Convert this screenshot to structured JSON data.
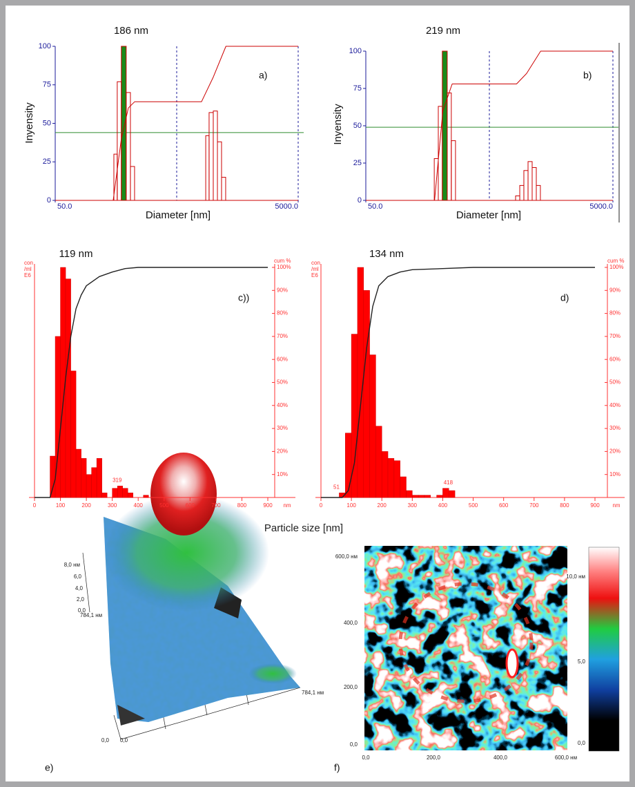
{
  "chart_data": [
    {
      "type": "histogram",
      "title": "186 nm",
      "panel_label": "a)",
      "xlabel": "Diameter [nm]",
      "ylabel": "Inyensity",
      "log_x": true,
      "bins": [
        152,
        162,
        175,
        192,
        208,
        225,
        867,
        924,
        1000,
        1082,
        1170,
        1265
      ],
      "values": [
        30,
        77,
        100,
        70,
        22,
        0,
        42,
        57,
        58,
        38,
        15
      ],
      "color": "#cc0000",
      "fills": [
        "none",
        "none",
        "#1a8a1a",
        "none",
        "none",
        "none",
        "none",
        "none",
        "none",
        "none",
        "none"
      ],
      "cumulative": {
        "x": [
          50,
          150,
          175,
          200,
          225,
          800,
          1000,
          1270,
          5000
        ],
        "values": [
          0,
          0,
          40,
          60,
          64,
          64,
          80,
          100,
          100
        ],
        "color": "#cc0000"
      },
      "hline": 44,
      "hline_color": "#2e8b2e",
      "vlines": [
        500,
        5000
      ],
      "vline_color": "#1a1a9a",
      "xlim": [
        50,
        5000
      ],
      "xticks": [
        {
          "value": 50,
          "label": "50.0"
        },
        {
          "value": 5000,
          "label": "5000.0"
        }
      ],
      "ylim": [
        0,
        100
      ],
      "yticks": [
        0,
        25,
        50,
        75,
        100
      ],
      "axis_color": "#1a1a9a"
    },
    {
      "type": "histogram",
      "title": "219 nm",
      "panel_label": "b)",
      "xlabel": "Diameter [nm]",
      "ylabel": "Inyensity",
      "log_x": true,
      "bins": [
        179,
        193,
        208,
        228,
        246,
        266,
        815,
        881,
        951,
        1028,
        1110,
        1199,
        1294
      ],
      "values": [
        28,
        63,
        100,
        72,
        40,
        0,
        3,
        10,
        20,
        26,
        22,
        10
      ],
      "color": "#cc0000",
      "fills": [
        "none",
        "none",
        "#1a8a1a",
        "none",
        "none",
        "none",
        "none",
        "none",
        "none",
        "none",
        "none",
        "none"
      ],
      "cumulative": {
        "x": [
          50,
          180,
          210,
          250,
          830,
          1000,
          1300,
          5000
        ],
        "values": [
          0,
          0,
          60,
          78,
          78,
          85,
          100,
          100
        ],
        "color": "#cc0000"
      },
      "hline": 49,
      "hline_color": "#2e8b2e",
      "vlines": [
        500,
        5000
      ],
      "vline_color": "#1a1a9a",
      "xlim": [
        50,
        5000
      ],
      "xticks": [
        {
          "value": 50,
          "label": "50.0"
        },
        {
          "value": 5000,
          "label": "5000.0"
        }
      ],
      "ylim": [
        0,
        100
      ],
      "yticks": [
        0,
        25,
        50,
        75,
        100
      ],
      "axis_color": "#1a1a9a"
    },
    {
      "type": "histogram",
      "title": "119 nm",
      "panel_label": "c))",
      "ylabel_lines": [
        "con",
        "/ml",
        "E6"
      ],
      "y2label": "cum %",
      "bins": [
        60,
        80,
        100,
        120,
        140,
        160,
        180,
        200,
        220,
        240,
        260,
        280,
        300,
        320,
        340,
        360,
        380,
        400,
        420,
        440
      ],
      "values": [
        18,
        70,
        100,
        95,
        55,
        21,
        17,
        10,
        13,
        17,
        2,
        0,
        4,
        5,
        4,
        2,
        0,
        0,
        1
      ],
      "color": "#ff0000",
      "annotations": [
        319
      ],
      "cumulative": {
        "x": [
          0,
          60,
          80,
          100,
          120,
          140,
          160,
          180,
          200,
          250,
          300,
          350,
          400,
          900
        ],
        "values": [
          0,
          0,
          8,
          30,
          52,
          70,
          82,
          88,
          92,
          96,
          98,
          99.5,
          100,
          100
        ],
        "color": "#222222",
        "axis": "y2"
      },
      "xlim": [
        0,
        900
      ],
      "xticks": [
        0,
        100,
        200,
        300,
        400,
        500,
        600,
        700,
        800,
        900
      ],
      "xunit": "nm",
      "ylim": [
        0,
        100
      ],
      "y2lim": [
        0,
        100
      ],
      "y2ticks": [
        {
          "value": 10,
          "label": "10%"
        },
        {
          "value": 20,
          "label": "20%"
        },
        {
          "value": 30,
          "label": "30%"
        },
        {
          "value": 40,
          "label": "40%"
        },
        {
          "value": 50,
          "label": "50%"
        },
        {
          "value": 60,
          "label": "60%"
        },
        {
          "value": 70,
          "label": "70%"
        },
        {
          "value": 80,
          "label": "80%"
        },
        {
          "value": 90,
          "label": "90%"
        },
        {
          "value": 100,
          "label": "100%"
        }
      ],
      "axis_color": "#ff3030"
    },
    {
      "type": "histogram",
      "title": "134 nm",
      "panel_label": "d)",
      "ylabel_lines": [
        "con",
        "/ml",
        "E6"
      ],
      "y2label": "cum %",
      "bins": [
        60,
        80,
        100,
        120,
        140,
        160,
        180,
        200,
        220,
        240,
        260,
        280,
        300,
        320,
        340,
        360,
        380,
        400,
        420,
        440
      ],
      "values": [
        2,
        28,
        71,
        100,
        90,
        62,
        31,
        20,
        17,
        16,
        9,
        3,
        1,
        1,
        1,
        0,
        1,
        4,
        3
      ],
      "color": "#ff0000",
      "annotations": [
        51,
        418
      ],
      "cumulative": {
        "x": [
          0,
          70,
          90,
          110,
          130,
          150,
          170,
          190,
          220,
          260,
          300,
          400,
          500,
          900
        ],
        "values": [
          0,
          0,
          3,
          15,
          40,
          65,
          83,
          92,
          96,
          98,
          99,
          99.5,
          100,
          100
        ],
        "color": "#222222",
        "axis": "y2"
      },
      "xlim": [
        0,
        900
      ],
      "xticks": [
        0,
        100,
        200,
        300,
        400,
        500,
        600,
        700,
        800,
        900
      ],
      "xunit": "nm",
      "ylim": [
        0,
        100
      ],
      "y2lim": [
        0,
        100
      ],
      "y2ticks": [
        {
          "value": 10,
          "label": "10%"
        },
        {
          "value": 20,
          "label": "20%"
        },
        {
          "value": 30,
          "label": "30%"
        },
        {
          "value": 40,
          "label": "40%"
        },
        {
          "value": 50,
          "label": "50%"
        },
        {
          "value": 60,
          "label": "60%"
        },
        {
          "value": 70,
          "label": "70%"
        },
        {
          "value": 80,
          "label": "80%"
        },
        {
          "value": 90,
          "label": "90%"
        },
        {
          "value": 100,
          "label": "100%"
        }
      ],
      "axis_color": "#ff3030"
    }
  ],
  "shared_xlabel": "Particle size [nm]",
  "afm_3d": {
    "z_labels": [
      "8,0 нм",
      "6,0",
      "4,0",
      "2,0",
      "0,0"
    ],
    "left_label": "784,1 нм",
    "right_label": "784,1 нм",
    "origin_labels": [
      "0,0",
      "0,0"
    ],
    "panel_label": "e)"
  },
  "afm_map": {
    "yticks": [
      "600,0 нм",
      "400,0",
      "200,0",
      "0,0"
    ],
    "xticks": [
      "0,0",
      "200,0",
      "400,0",
      "600,0 нм"
    ],
    "colorbar_ticks": [
      "10,0 нм",
      "5,0",
      "0,0"
    ],
    "panel_label": "f)"
  }
}
